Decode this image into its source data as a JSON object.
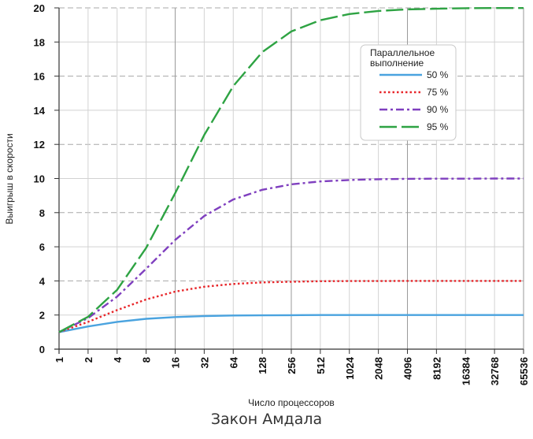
{
  "chart_data": {
    "type": "line",
    "caption": "Закон Амдала",
    "xlabel": "Число процессоров",
    "ylabel": "Выигрыш в скорости",
    "x_scale": "log2",
    "x": [
      1,
      2,
      4,
      8,
      16,
      32,
      64,
      128,
      256,
      512,
      1024,
      2048,
      4096,
      8192,
      16384,
      32768,
      65536
    ],
    "x_tick_labels": [
      "1",
      "2",
      "4",
      "8",
      "16",
      "32",
      "64",
      "128",
      "256",
      "512",
      "1024",
      "2048",
      "4096",
      "8192",
      "16384",
      "32768",
      "65536"
    ],
    "ylim": [
      0,
      20
    ],
    "y_ticks": [
      0,
      2,
      4,
      6,
      8,
      10,
      12,
      14,
      16,
      18,
      20
    ],
    "grid": true,
    "legend": {
      "title": "Параллельное выполнение",
      "placement": "top-right"
    },
    "series": [
      {
        "name": "50 %",
        "color": "#4aa3df",
        "dash": "solid",
        "values": [
          1.0,
          1.33,
          1.6,
          1.78,
          1.88,
          1.94,
          1.97,
          1.98,
          1.99,
          2.0,
          2.0,
          2.0,
          2.0,
          2.0,
          2.0,
          2.0,
          2.0
        ]
      },
      {
        "name": "75 %",
        "color": "#e8262a",
        "dash": "dotted",
        "values": [
          1.0,
          1.6,
          2.29,
          2.91,
          3.37,
          3.66,
          3.82,
          3.91,
          3.95,
          3.98,
          3.99,
          3.99,
          4.0,
          4.0,
          4.0,
          4.0,
          4.0
        ]
      },
      {
        "name": "90 %",
        "color": "#7f3fbf",
        "dash": "dashdot",
        "values": [
          1.0,
          1.82,
          3.08,
          4.71,
          6.4,
          7.8,
          8.77,
          9.34,
          9.66,
          9.83,
          9.91,
          9.96,
          9.98,
          9.99,
          9.99,
          10.0,
          10.0
        ]
      },
      {
        "name": "95 %",
        "color": "#2ea343",
        "dash": "longdash",
        "values": [
          1.0,
          1.9,
          3.48,
          5.93,
          9.14,
          12.55,
          15.42,
          17.41,
          18.62,
          19.28,
          19.64,
          19.82,
          19.91,
          19.95,
          19.98,
          19.99,
          19.99
        ]
      }
    ]
  }
}
